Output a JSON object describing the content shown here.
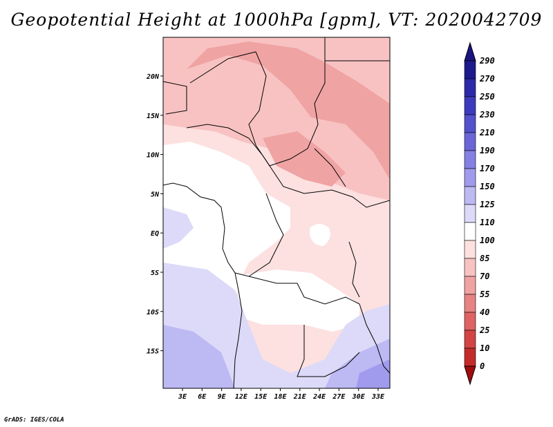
{
  "title": "Geopotential Height at 1000hPa [gpm], VT: 2020042709",
  "credit": "GrADS: IGES/COLA",
  "map": {
    "x_ticks": [
      "3E",
      "6E",
      "9E",
      "12E",
      "15E",
      "18E",
      "21E",
      "24E",
      "27E",
      "30E",
      "33E"
    ],
    "y_ticks": [
      "20N",
      "15N",
      "10N",
      "5N",
      "EQ",
      "5S",
      "10S",
      "15S"
    ]
  },
  "colorbar": {
    "levels": [
      "290",
      "270",
      "250",
      "230",
      "210",
      "190",
      "170",
      "150",
      "125",
      "110",
      "100",
      "85",
      "70",
      "55",
      "40",
      "25",
      "10",
      "0"
    ],
    "colors": [
      "#1d1a8c",
      "#2c2aa8",
      "#3d3bbd",
      "#5451cc",
      "#6a66d8",
      "#8580e3",
      "#a09bec",
      "#bdb9f3",
      "#dcdaf8",
      "#ffffff",
      "#fde0e0",
      "#f8c2c2",
      "#f0a3a3",
      "#e88383",
      "#df6363",
      "#d34545",
      "#c42b2b",
      "#b11515"
    ],
    "top_arrow_color": "#1a1580",
    "bottom_arrow_color": "#a00c0c"
  }
}
